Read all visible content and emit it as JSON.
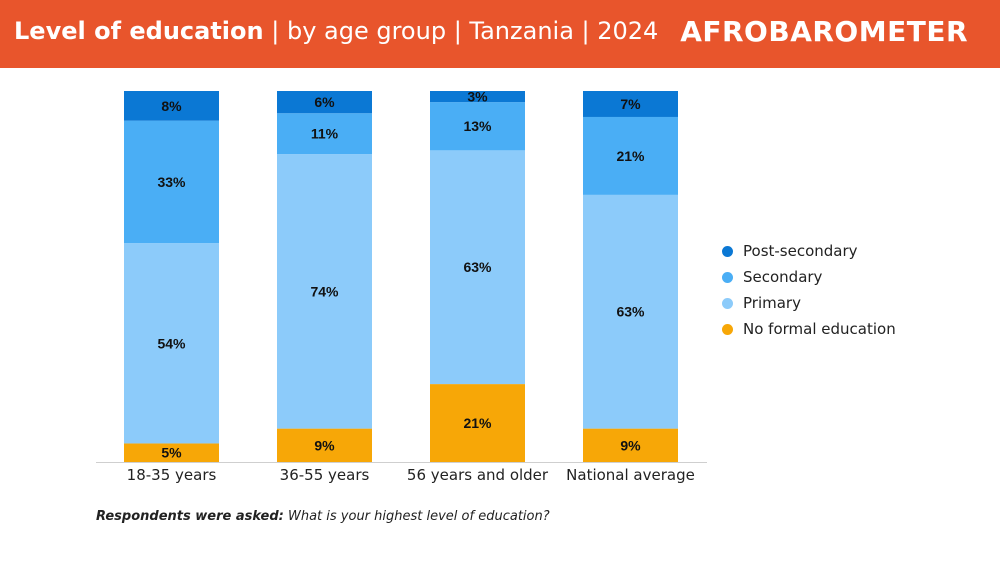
{
  "header": {
    "title_bold": "Level of education",
    "title_rest": " | by age group | Tanzania | 2024",
    "logo_text": "AFROBAROMETER"
  },
  "footnote": {
    "lead": "Respondents were asked:",
    "question": " What is your highest level of education?"
  },
  "colors": {
    "header_bg": "#e8552c",
    "post_secondary": "#0b78d4",
    "secondary": "#4aaef5",
    "primary": "#8ccbfa",
    "no_formal": "#f7a707"
  },
  "chart_data": {
    "type": "bar",
    "stacked": true,
    "categories": [
      "18-35 years",
      "36-55 years",
      "56 years and older",
      "National average"
    ],
    "series": [
      {
        "name": "No formal education",
        "color": "#f7a707",
        "values": [
          5,
          9,
          21,
          9
        ],
        "labels": [
          "5%",
          "9%",
          "21%",
          "9%"
        ]
      },
      {
        "name": "Primary",
        "color": "#8ccbfa",
        "values": [
          54,
          74,
          63,
          63
        ],
        "labels": [
          "54%",
          "74%",
          "63%",
          "63%"
        ]
      },
      {
        "name": "Secondary",
        "color": "#4aaef5",
        "values": [
          33,
          11,
          13,
          21
        ],
        "labels": [
          "33%",
          "11%",
          "13%",
          "21%"
        ]
      },
      {
        "name": "Post-secondary",
        "color": "#0b78d4",
        "values": [
          8,
          6,
          3,
          7
        ],
        "labels": [
          "8%",
          "6%",
          "3%",
          "7%"
        ]
      }
    ],
    "legend_order": [
      "Post-secondary",
      "Secondary",
      "Primary",
      "No formal education"
    ],
    "legend_position": "right",
    "grid": false
  }
}
